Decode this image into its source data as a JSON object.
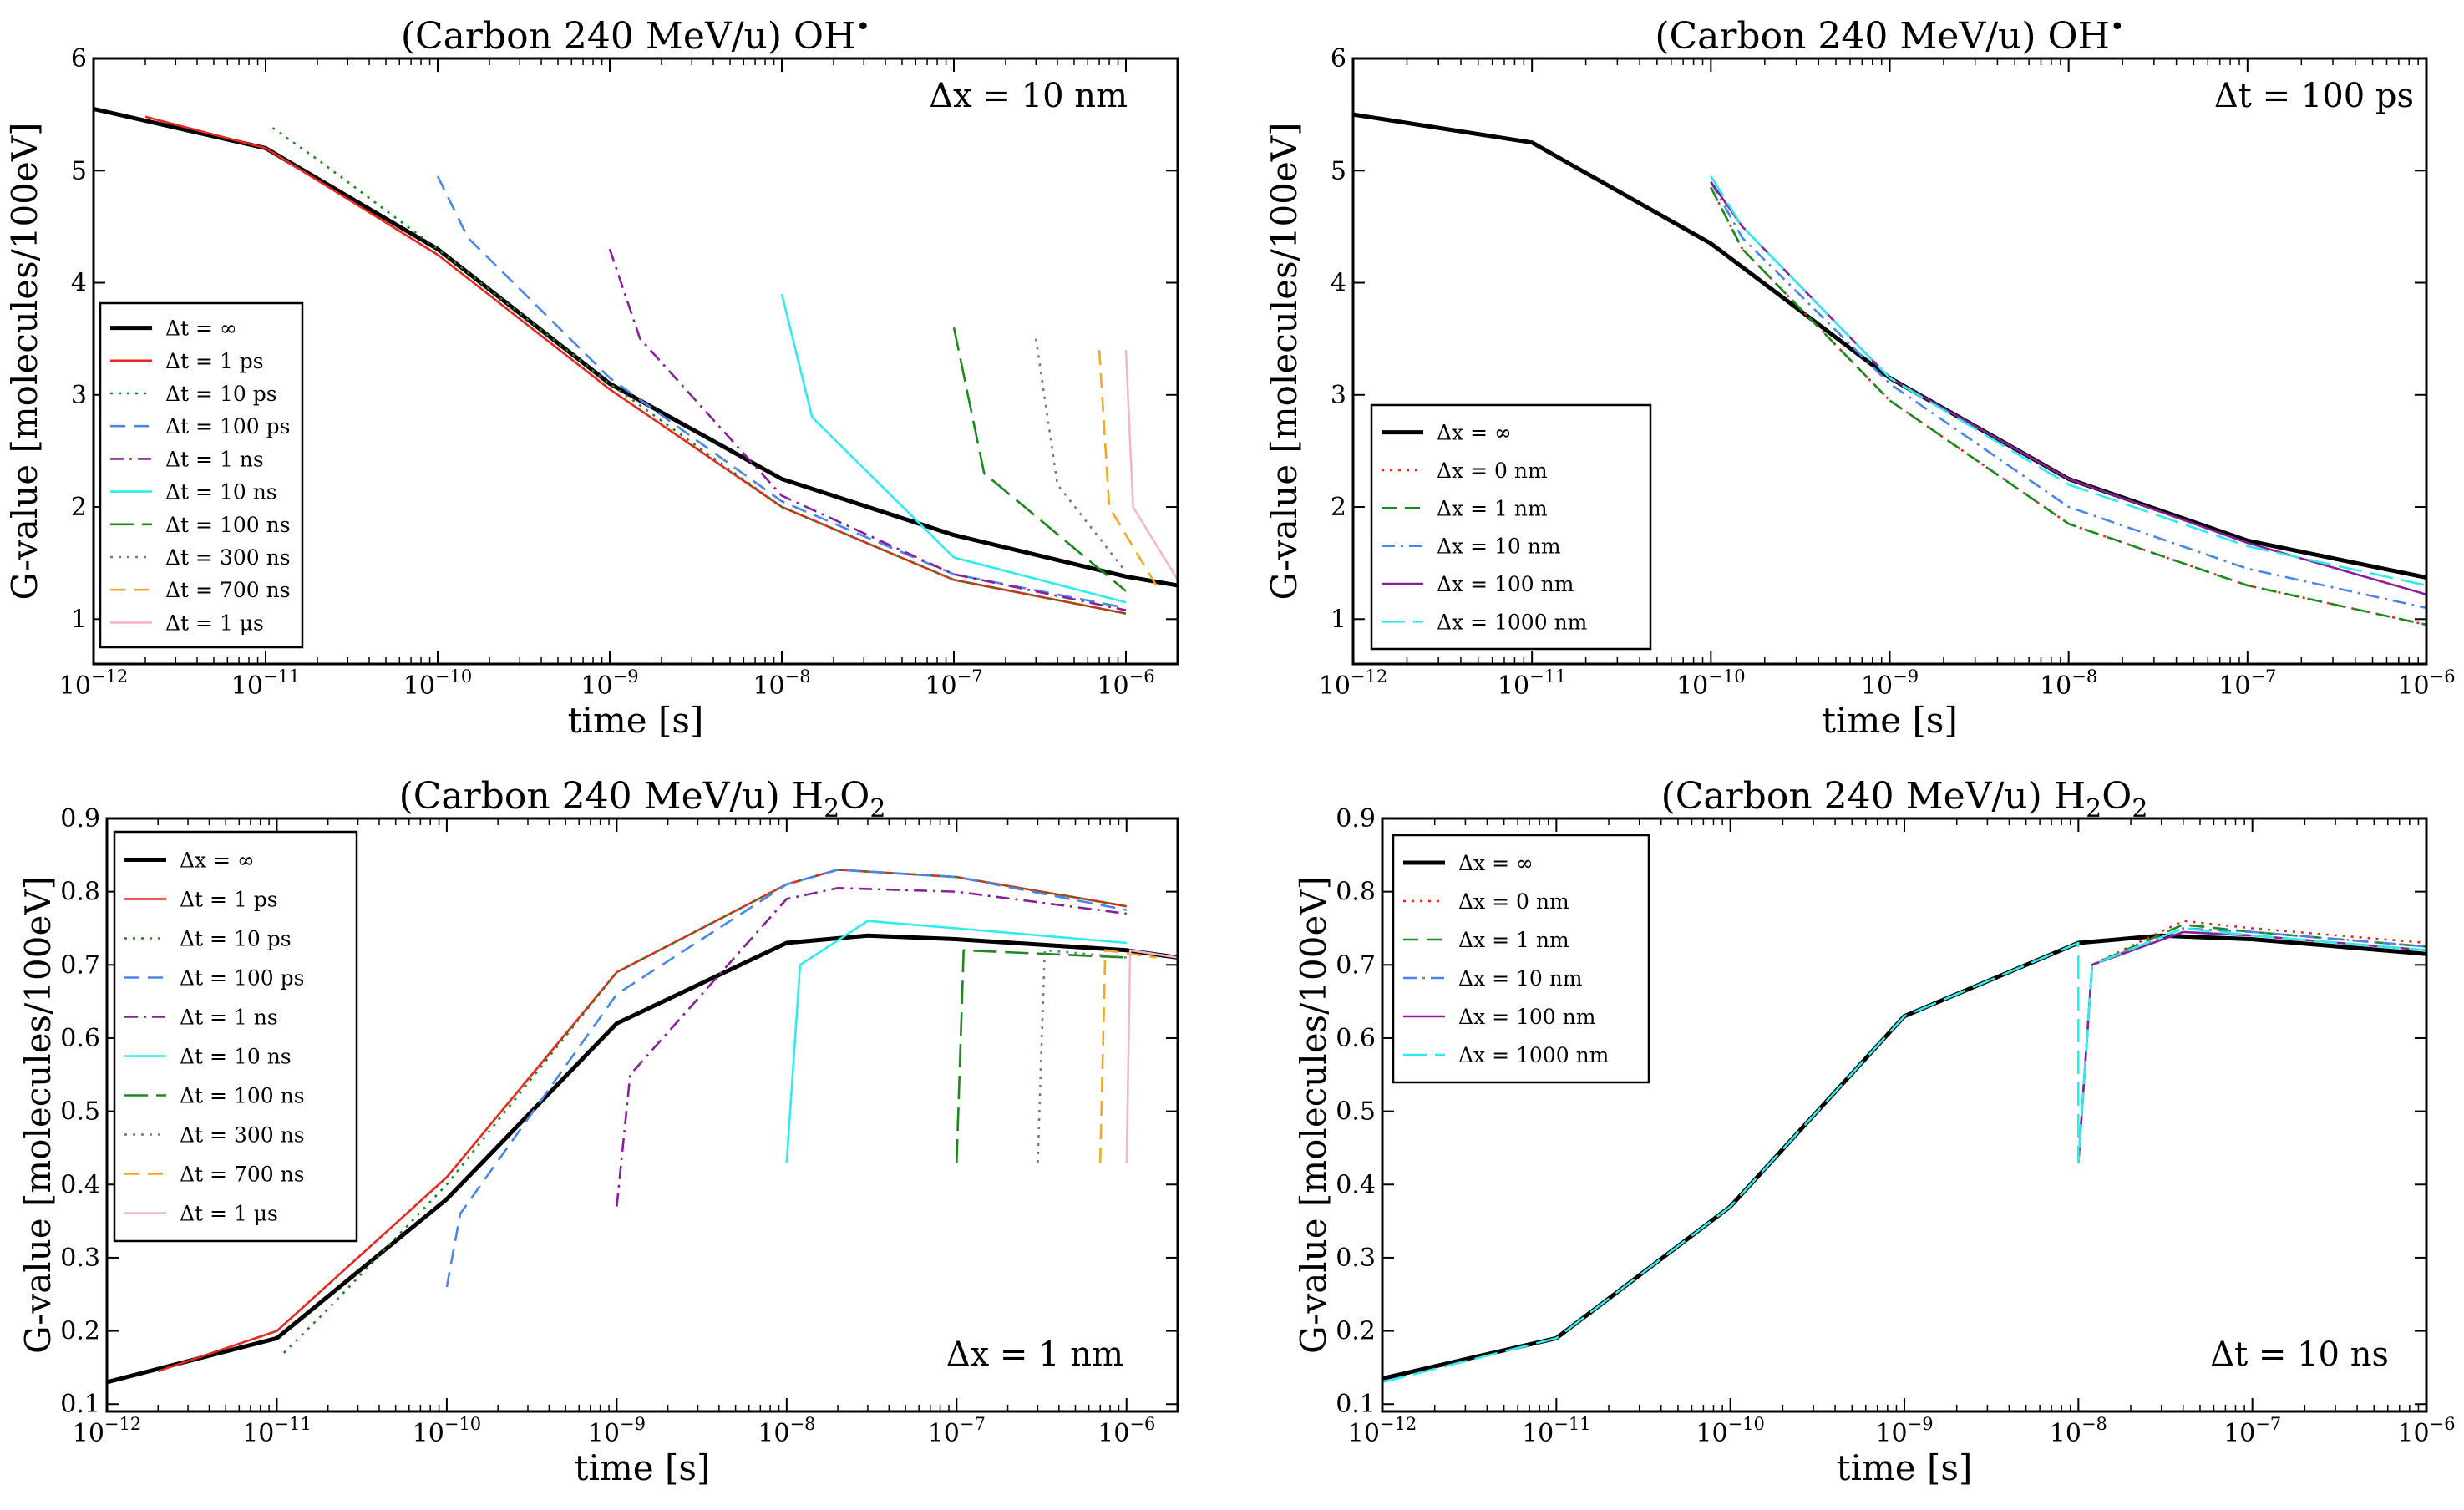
{
  "chart_data": [
    {
      "type": "line",
      "title": "(Carbon 240 MeV/u) OH•",
      "xlabel": "time [s]",
      "ylabel": "G-value [molecules/100eV]",
      "xscale": "log",
      "xlim": [
        1e-12,
        2e-06
      ],
      "ylim": [
        0.6,
        6.0
      ],
      "yticks": [
        "1",
        "2",
        "3",
        "4",
        "5",
        "6"
      ],
      "xticks_exp": [
        "-12",
        "-11",
        "-10",
        "-9",
        "-8",
        "-7",
        "-6"
      ],
      "annotation": "Δx = 10 nm",
      "annotation_pos": "top-right",
      "legend_pos": "bottom-left",
      "series": [
        {
          "name": "Δt = ∞",
          "color": "#000000",
          "style": "solid",
          "x": [
            1e-12,
            1e-11,
            1e-10,
            1e-09,
            1e-08,
            1e-07,
            1e-06,
            2e-06
          ],
          "y": [
            5.55,
            5.2,
            4.3,
            3.1,
            2.25,
            1.75,
            1.38,
            1.3
          ]
        },
        {
          "name": "Δt = 1 ps",
          "color": "#e8281e",
          "style": "solid",
          "x": [
            2e-12,
            1e-11,
            1e-10,
            1e-09,
            1e-08,
            1e-07,
            1e-06
          ],
          "y": [
            5.48,
            5.2,
            4.25,
            3.05,
            2.0,
            1.35,
            1.05
          ]
        },
        {
          "name": "Δt = 10 ps",
          "color": "#1b8a1b",
          "style": "dotted",
          "x": [
            1.1e-11,
            2e-11,
            1e-10,
            1e-09,
            1e-08,
            1e-07,
            1e-06
          ],
          "y": [
            5.38,
            5.1,
            4.3,
            3.1,
            2.0,
            1.35,
            1.05
          ]
        },
        {
          "name": "Δt = 100 ps",
          "color": "#4a86e8",
          "style": "dashed",
          "x": [
            1e-10,
            1.5e-10,
            1e-09,
            1e-08,
            1e-07,
            1e-06
          ],
          "y": [
            4.95,
            4.4,
            3.15,
            2.05,
            1.4,
            1.1
          ]
        },
        {
          "name": "Δt = 1 ns",
          "color": "#8a1f9b",
          "style": "dashdot",
          "x": [
            1e-09,
            1.5e-09,
            1e-08,
            1e-07,
            1e-06
          ],
          "y": [
            4.3,
            3.5,
            2.1,
            1.4,
            1.08
          ]
        },
        {
          "name": "Δt = 10 ns",
          "color": "#2eecec",
          "style": "solid",
          "x": [
            1e-08,
            1.5e-08,
            1e-07,
            1e-06
          ],
          "y": [
            3.9,
            2.8,
            1.55,
            1.15
          ]
        },
        {
          "name": "Δt = 100 ns",
          "color": "#1b8a1b",
          "style": "longdash",
          "x": [
            1e-07,
            1.5e-07,
            1e-06
          ],
          "y": [
            3.6,
            2.3,
            1.25
          ]
        },
        {
          "name": "Δt = 300 ns",
          "color": "#6a7b8c",
          "style": "dotted",
          "x": [
            3e-07,
            4e-07,
            1e-06
          ],
          "y": [
            3.5,
            2.2,
            1.42
          ]
        },
        {
          "name": "Δt = 700 ns",
          "color": "#f5a623",
          "style": "dashed",
          "x": [
            7e-07,
            8e-07,
            1.5e-06
          ],
          "y": [
            3.4,
            2.0,
            1.3
          ]
        },
        {
          "name": "Δt = 1 μs",
          "color": "#f7b6c8",
          "style": "solid",
          "x": [
            1e-06,
            1.1e-06,
            2e-06
          ],
          "y": [
            3.4,
            2.0,
            1.35
          ]
        }
      ]
    },
    {
      "type": "line",
      "title": "(Carbon 240 MeV/u) OH•",
      "xlabel": "time [s]",
      "ylabel": "G-value [molecules/100eV]",
      "xscale": "log",
      "xlim": [
        1e-12,
        1e-06
      ],
      "ylim": [
        0.6,
        6.0
      ],
      "yticks": [
        "1",
        "2",
        "3",
        "4",
        "5",
        "6"
      ],
      "xticks_exp": [
        "-12",
        "-11",
        "-10",
        "-9",
        "-8",
        "-7",
        "-6"
      ],
      "annotation": "Δt = 100 ps",
      "annotation_pos": "top-right",
      "legend_pos": "bottom-left",
      "series": [
        {
          "name": "Δx = ∞",
          "color": "#000000",
          "style": "solid",
          "x": [
            1e-12,
            1e-11,
            1e-10,
            1e-09,
            1e-08,
            1e-07,
            1e-06
          ],
          "y": [
            5.5,
            5.25,
            4.35,
            3.15,
            2.25,
            1.7,
            1.37
          ]
        },
        {
          "name": "Δx = 0 nm",
          "color": "#e8281e",
          "style": "dotted",
          "x": [
            1e-10,
            1.5e-10,
            1e-09,
            1e-08,
            1e-07,
            1e-06
          ],
          "y": [
            4.85,
            4.3,
            2.95,
            1.85,
            1.3,
            0.95
          ]
        },
        {
          "name": "Δx = 1 nm",
          "color": "#1b8a1b",
          "style": "dashed",
          "x": [
            1e-10,
            1.5e-10,
            1e-09,
            1e-08,
            1e-07,
            1e-06
          ],
          "y": [
            4.85,
            4.3,
            2.95,
            1.85,
            1.3,
            0.95
          ]
        },
        {
          "name": "Δx = 10 nm",
          "color": "#4a86e8",
          "style": "dashdot",
          "x": [
            1e-10,
            1.5e-10,
            1e-09,
            1e-08,
            1e-07,
            1e-06
          ],
          "y": [
            4.9,
            4.4,
            3.1,
            2.0,
            1.45,
            1.1
          ]
        },
        {
          "name": "Δx = 100 nm",
          "color": "#8a1f9b",
          "style": "solid",
          "x": [
            1e-10,
            1.5e-10,
            1e-09,
            1e-08,
            1e-07,
            1e-06
          ],
          "y": [
            4.9,
            4.5,
            3.15,
            2.25,
            1.68,
            1.22
          ]
        },
        {
          "name": "Δx = 1000 nm",
          "color": "#2eecec",
          "style": "longdash",
          "x": [
            1e-10,
            1.5e-10,
            1e-09,
            1e-08,
            1e-07,
            1e-06
          ],
          "y": [
            4.95,
            4.5,
            3.15,
            2.2,
            1.65,
            1.3
          ]
        }
      ]
    },
    {
      "type": "line",
      "title": "(Carbon 240 MeV/u) H2O2",
      "xlabel": "time [s]",
      "ylabel": "G-value [molecules/100eV]",
      "xscale": "log",
      "xlim": [
        1e-12,
        2e-06
      ],
      "ylim": [
        0.09,
        0.9
      ],
      "yticks": [
        "0.1",
        "0.2",
        "0.3",
        "0.4",
        "0.5",
        "0.6",
        "0.7",
        "0.8",
        "0.9"
      ],
      "xticks_exp": [
        "-12",
        "-11",
        "-10",
        "-9",
        "-8",
        "-7",
        "-6"
      ],
      "annotation": "Δx = 1 nm",
      "annotation_pos": "bottom-right",
      "legend_pos": "top-left",
      "series": [
        {
          "name": "Δx = ∞",
          "color": "#000000",
          "style": "solid",
          "x": [
            1e-12,
            1e-11,
            1e-10,
            1e-09,
            1e-08,
            3e-08,
            1e-07,
            1e-06,
            2e-06
          ],
          "y": [
            0.13,
            0.19,
            0.38,
            0.62,
            0.73,
            0.74,
            0.735,
            0.72,
            0.71
          ]
        },
        {
          "name": "Δt = 1 ps",
          "color": "#e8281e",
          "style": "solid",
          "x": [
            2e-12,
            1e-11,
            1e-10,
            1e-09,
            1e-08,
            2e-08,
            1e-07,
            1e-06
          ],
          "y": [
            0.145,
            0.2,
            0.41,
            0.69,
            0.81,
            0.83,
            0.82,
            0.78
          ]
        },
        {
          "name": "Δt = 10 ps",
          "color": "#1b8a1b",
          "style": "dotted",
          "x": [
            1.1e-11,
            2e-11,
            1e-10,
            1e-09,
            1e-08,
            2e-08,
            1e-07,
            1e-06
          ],
          "y": [
            0.17,
            0.23,
            0.4,
            0.69,
            0.81,
            0.83,
            0.82,
            0.78
          ]
        },
        {
          "name": "Δt = 100 ps",
          "color": "#4a86e8",
          "style": "dashed",
          "x": [
            1e-10,
            1.2e-10,
            1e-09,
            1e-08,
            2e-08,
            1e-07,
            1e-06
          ],
          "y": [
            0.26,
            0.36,
            0.66,
            0.81,
            0.83,
            0.82,
            0.775
          ]
        },
        {
          "name": "Δt = 1 ns",
          "color": "#8a1f9b",
          "style": "dashdot",
          "x": [
            1e-09,
            1.2e-09,
            1e-08,
            2e-08,
            1e-07,
            1e-06
          ],
          "y": [
            0.37,
            0.55,
            0.79,
            0.805,
            0.8,
            0.77
          ]
        },
        {
          "name": "Δt = 10 ns",
          "color": "#2eecec",
          "style": "solid",
          "x": [
            1e-08,
            1.2e-08,
            3e-08,
            1e-07,
            1e-06
          ],
          "y": [
            0.43,
            0.7,
            0.76,
            0.75,
            0.73
          ]
        },
        {
          "name": "Δt = 100 ns",
          "color": "#1b8a1b",
          "style": "longdash",
          "x": [
            1e-07,
            1.1e-07,
            1e-06
          ],
          "y": [
            0.43,
            0.72,
            0.71
          ]
        },
        {
          "name": "Δt = 300 ns",
          "color": "#6a7b8c",
          "style": "dotted",
          "x": [
            3e-07,
            3.3e-07,
            1e-06
          ],
          "y": [
            0.43,
            0.72,
            0.71
          ]
        },
        {
          "name": "Δt = 700 ns",
          "color": "#f5a623",
          "style": "dashed",
          "x": [
            7e-07,
            7.5e-07,
            1.5e-06
          ],
          "y": [
            0.43,
            0.72,
            0.71
          ]
        },
        {
          "name": "Δt = 1 μs",
          "color": "#f7b6c8",
          "style": "solid",
          "x": [
            1e-06,
            1.05e-06,
            2e-06
          ],
          "y": [
            0.43,
            0.72,
            0.71
          ]
        }
      ]
    },
    {
      "type": "line",
      "title": "(Carbon 240 MeV/u) H2O2",
      "xlabel": "time [s]",
      "ylabel": "G-value [molecules/100eV]",
      "xscale": "log",
      "xlim": [
        1e-12,
        1e-06
      ],
      "ylim": [
        0.09,
        0.9
      ],
      "yticks": [
        "0.1",
        "0.2",
        "0.3",
        "0.4",
        "0.5",
        "0.6",
        "0.7",
        "0.8",
        "0.9"
      ],
      "xticks_exp": [
        "-12",
        "-11",
        "-10",
        "-9",
        "-8",
        "-7",
        "-6"
      ],
      "annotation": "Δt = 10 ns",
      "annotation_pos": "bottom-right",
      "legend_pos": "top-left",
      "series": [
        {
          "name": "Δx = ∞",
          "color": "#000000",
          "style": "solid",
          "x": [
            1e-12,
            1e-11,
            1e-10,
            1e-09,
            1e-08,
            3e-08,
            1e-07,
            1e-06
          ],
          "y": [
            0.135,
            0.19,
            0.37,
            0.63,
            0.73,
            0.74,
            0.735,
            0.715
          ]
        },
        {
          "name": "Δx = 0 nm",
          "color": "#e8281e",
          "style": "dotted",
          "x": [
            1e-08,
            1.2e-08,
            4e-08,
            1e-07,
            1e-06
          ],
          "y": [
            0.43,
            0.7,
            0.76,
            0.75,
            0.73
          ]
        },
        {
          "name": "Δx = 1 nm",
          "color": "#1b8a1b",
          "style": "dashed",
          "x": [
            1e-08,
            1.2e-08,
            4e-08,
            1e-07,
            1e-06
          ],
          "y": [
            0.43,
            0.7,
            0.755,
            0.745,
            0.725
          ]
        },
        {
          "name": "Δx = 10 nm",
          "color": "#4a86e8",
          "style": "dashdot",
          "x": [
            1e-08,
            1.2e-08,
            4e-08,
            1e-07,
            1e-06
          ],
          "y": [
            0.43,
            0.7,
            0.75,
            0.745,
            0.725
          ]
        },
        {
          "name": "Δx = 100 nm",
          "color": "#8a1f9b",
          "style": "solid",
          "x": [
            1e-08,
            1.2e-08,
            4e-08,
            1e-07,
            1e-06
          ],
          "y": [
            0.43,
            0.7,
            0.745,
            0.74,
            0.72
          ]
        },
        {
          "name": "Δx = 1000 nm",
          "color": "#2eecec",
          "style": "longdash",
          "x": [
            1e-12,
            1e-11,
            1e-10,
            1e-09,
            1e-08,
            1e-08,
            1.2e-08,
            4e-08,
            1e-07,
            1e-06
          ],
          "y": [
            0.13,
            0.19,
            0.37,
            0.63,
            0.73,
            0.43,
            0.7,
            0.75,
            0.74,
            0.72
          ]
        }
      ]
    }
  ]
}
